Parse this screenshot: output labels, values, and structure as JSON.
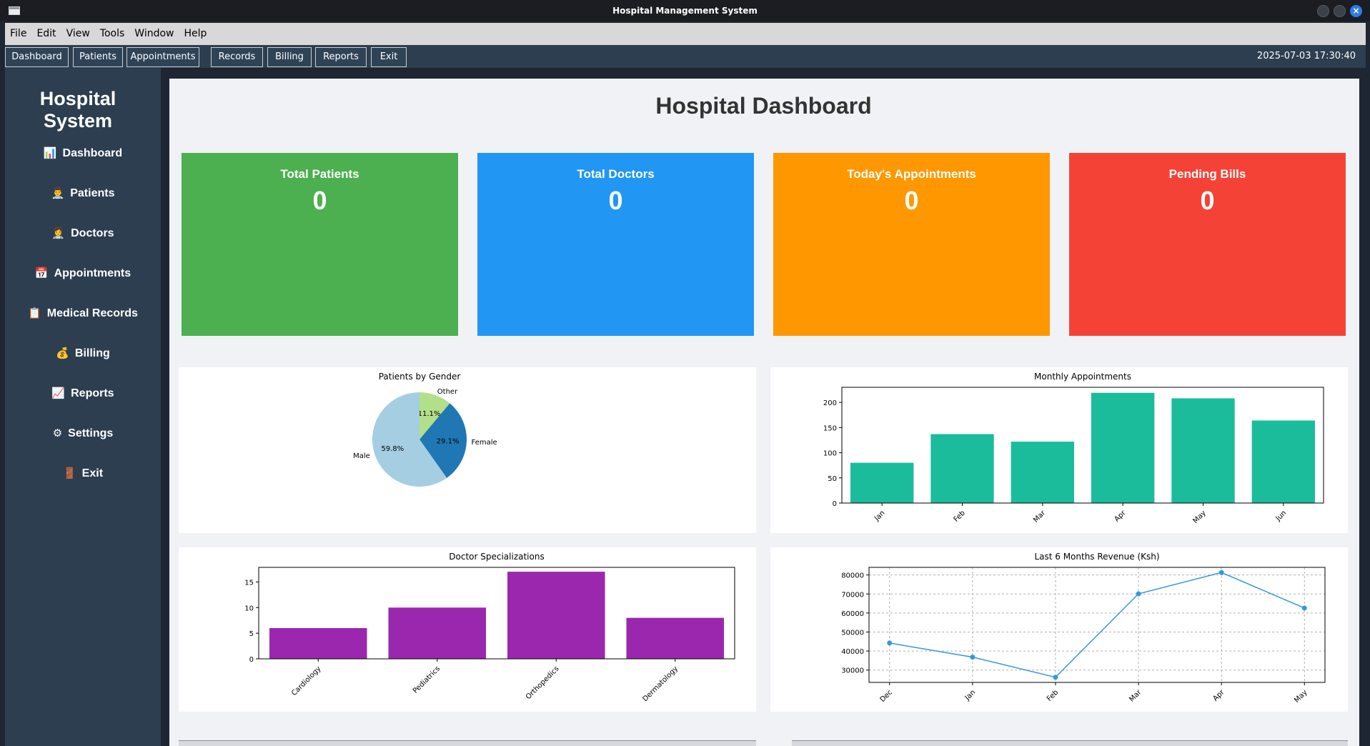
{
  "window": {
    "title": "Hospital Management System"
  },
  "menubar": {
    "items": [
      "File",
      "Edit",
      "View",
      "Tools",
      "Window",
      "Help"
    ]
  },
  "toolbar": {
    "buttons": [
      "Dashboard",
      "Patients",
      "Appointments",
      "Records",
      "Billing",
      "Reports",
      "Exit"
    ],
    "datetime": "2025-07-03 17:30:40"
  },
  "sidebar": {
    "brand": "Hospital System",
    "items": [
      {
        "icon": "📊",
        "icon_name": "bar-chart-icon",
        "label": "Dashboard"
      },
      {
        "icon": "👨‍⚕️",
        "icon_name": "patient-icon",
        "label": "Patients"
      },
      {
        "icon": "👩‍⚕️",
        "icon_name": "doctor-icon",
        "label": "Doctors"
      },
      {
        "icon": "📅",
        "icon_name": "calendar-icon",
        "label": "Appointments"
      },
      {
        "icon": "📋",
        "icon_name": "clipboard-icon",
        "label": "Medical Records"
      },
      {
        "icon": "💰",
        "icon_name": "money-bag-icon",
        "label": "Billing"
      },
      {
        "icon": "📈",
        "icon_name": "trend-chart-icon",
        "label": "Reports"
      },
      {
        "icon": "⚙",
        "icon_name": "gear-icon",
        "label": "Settings"
      },
      {
        "icon": "🚪",
        "icon_name": "door-icon",
        "label": "Exit"
      }
    ]
  },
  "dashboard": {
    "title": "Hospital Dashboard",
    "cards": [
      {
        "title": "Total Patients",
        "value": "0",
        "color": "#4caf50"
      },
      {
        "title": "Total Doctors",
        "value": "0",
        "color": "#2196f3"
      },
      {
        "title": "Today's Appointments",
        "value": "0",
        "color": "#ff9800"
      },
      {
        "title": "Pending Bills",
        "value": "0",
        "color": "#f44336"
      }
    ]
  },
  "chart_data": [
    {
      "type": "pie",
      "title": "Patients by Gender",
      "labels": [
        "Other",
        "Female",
        "Male"
      ],
      "values": [
        11.1,
        29.1,
        59.8
      ],
      "display": [
        "11.1%",
        "29.1%",
        "59.8%"
      ],
      "colors": [
        "#b2df8a",
        "#1f78b4",
        "#a6cee3"
      ]
    },
    {
      "type": "bar",
      "title": "Monthly Appointments",
      "categories": [
        "Jan",
        "Feb",
        "Mar",
        "Apr",
        "May",
        "Jun"
      ],
      "values": [
        80,
        137,
        122,
        219,
        208,
        164
      ],
      "ylim": [
        0,
        230
      ],
      "yticks": [
        0,
        50,
        100,
        150,
        200
      ],
      "color": "#1abc9c"
    },
    {
      "type": "bar",
      "title": "Doctor Specializations",
      "categories": [
        "Cardiology",
        "Pediatrics",
        "Orthopedics",
        "Dermatology"
      ],
      "values": [
        6,
        10,
        17,
        8
      ],
      "ylim": [
        0,
        17.85
      ],
      "yticks": [
        0,
        5,
        10,
        15
      ],
      "color": "#9b27af"
    },
    {
      "type": "line",
      "title": "Last 6 Months Revenue (Ksh)",
      "categories": [
        "Dec",
        "Jan",
        "Feb",
        "Mar",
        "Apr",
        "May"
      ],
      "values": [
        44200,
        36800,
        26200,
        70100,
        81300,
        62600
      ],
      "ylim": [
        23500,
        84000
      ],
      "yticks": [
        30000,
        40000,
        50000,
        60000,
        70000,
        80000
      ],
      "grid": true,
      "color": "#3498db"
    }
  ]
}
